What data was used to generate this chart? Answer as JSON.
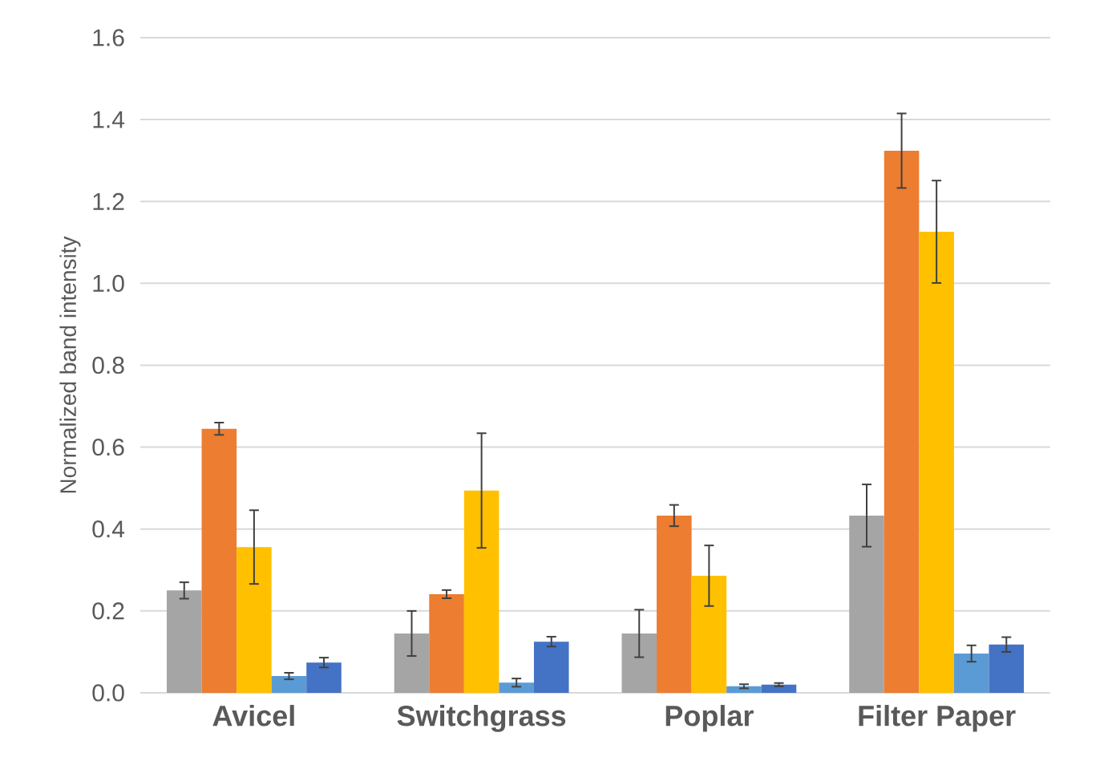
{
  "chart_data": {
    "type": "bar",
    "ylabel": "Normalized band intensity",
    "categories": [
      "Avicel",
      "Switchgrass",
      "Poplar",
      "Filter Paper"
    ],
    "series": [
      {
        "color": "#a5a5a5",
        "values": [
          0.25,
          0.145,
          0.145,
          0.433
        ],
        "errors": [
          0.02,
          0.055,
          0.058,
          0.076
        ]
      },
      {
        "color": "#ed7d31",
        "values": [
          0.645,
          0.241,
          0.433,
          1.324
        ],
        "errors": [
          0.015,
          0.01,
          0.026,
          0.091
        ]
      },
      {
        "color": "#ffc000",
        "values": [
          0.356,
          0.494,
          0.286,
          1.126
        ],
        "errors": [
          0.09,
          0.14,
          0.074,
          0.125
        ]
      },
      {
        "color": "#5b9bd5",
        "values": [
          0.041,
          0.025,
          0.016,
          0.096
        ],
        "errors": [
          0.008,
          0.01,
          0.005,
          0.02
        ]
      },
      {
        "color": "#4472c4",
        "values": [
          0.074,
          0.125,
          0.02,
          0.118
        ],
        "errors": [
          0.012,
          0.012,
          0.004,
          0.018
        ]
      }
    ],
    "ylim": [
      0,
      1.6
    ],
    "yticks": [
      {
        "value": 0,
        "label": "0.0"
      },
      0.2,
      0.4,
      0.6,
      0.8,
      {
        "value": 1.0,
        "label": "1.0"
      },
      1.2,
      1.4,
      1.6
    ],
    "grid": "y"
  }
}
